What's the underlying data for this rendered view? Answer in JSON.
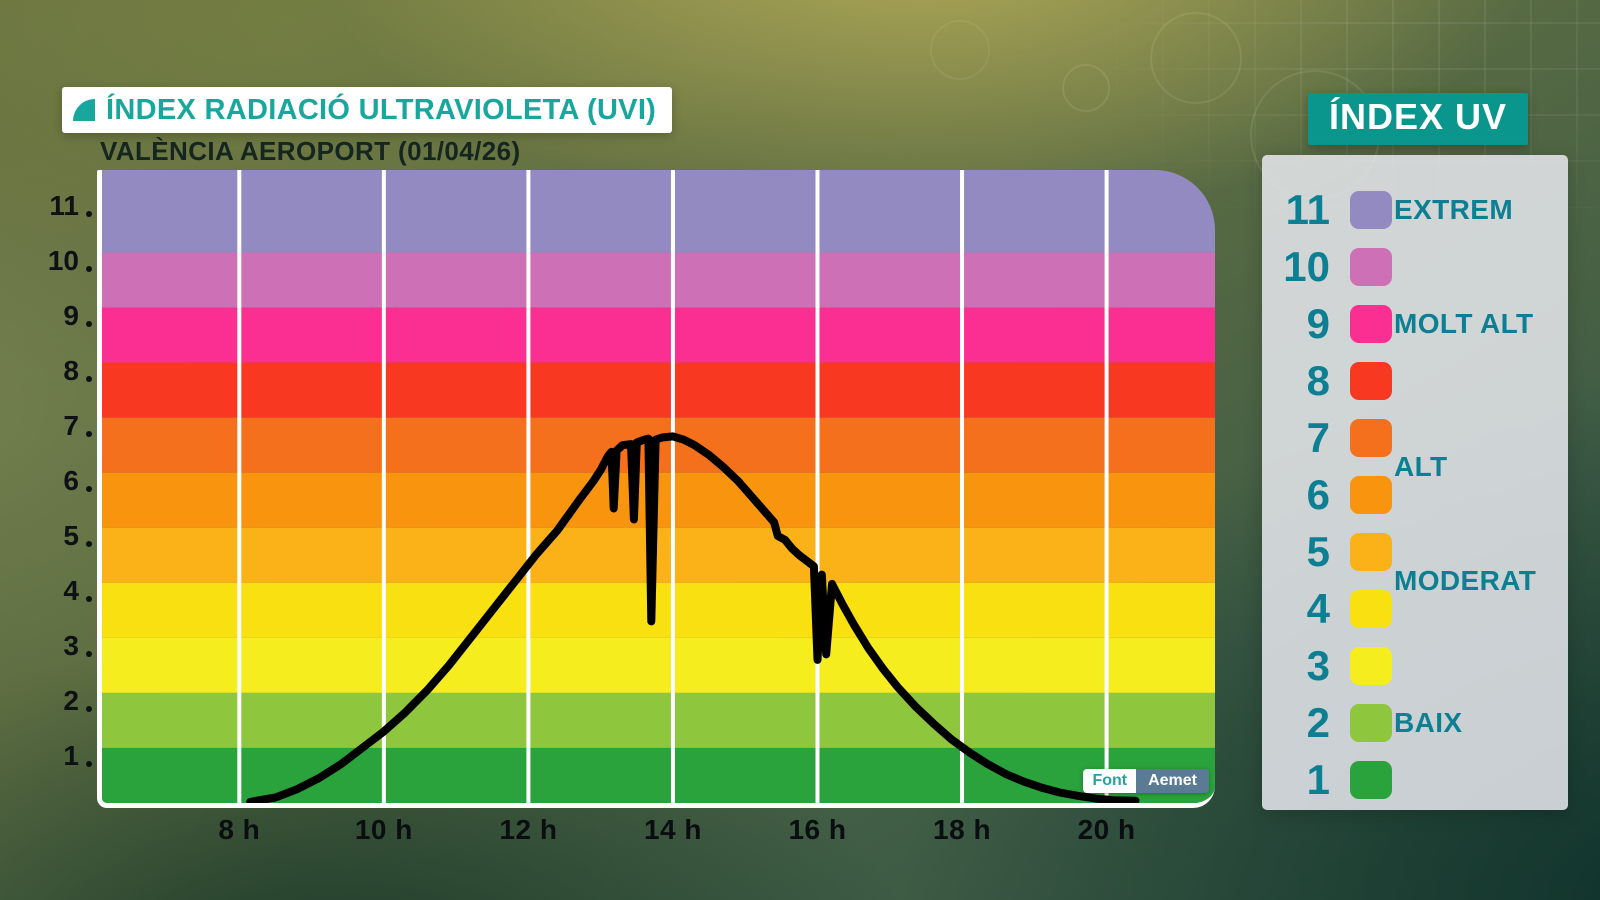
{
  "header": {
    "title": "ÍNDEX RADIACIÓ ULTRAVIOLETA (UVI)",
    "subtitle": "VALÈNCIA AEROPORT (01/04/26)",
    "corner_badge": "ÍNDEX UV"
  },
  "source": {
    "label": "Font",
    "value": "Aemet"
  },
  "colors": {
    "accent_teal": "#0a968c",
    "legend_text": "#0d7f93",
    "curve": "#000000",
    "gridline": "#ffffff"
  },
  "legend": {
    "categories": [
      {
        "text": "EXTREM",
        "anchor_level": 11
      },
      {
        "text": "MOLT ALT",
        "anchor_level": 9
      },
      {
        "text": "ALT",
        "anchor_level": 6.5
      },
      {
        "text": "MODERAT",
        "anchor_level": 4.5
      },
      {
        "text": "BAIX",
        "anchor_level": 2
      }
    ]
  },
  "chart_data": {
    "type": "line",
    "title": "ÍNDEX RADIACIÓ ULTRAVIOLETA (UVI)",
    "subtitle": "VALÈNCIA AEROPORT (01/04/26)",
    "station": "VALÈNCIA AEROPORT",
    "date": "01/04/26",
    "x_unit": "hour",
    "x_range": [
      6.1,
      21.5
    ],
    "y_range": [
      0,
      11.5
    ],
    "grid": true,
    "legend_position": "right",
    "x_ticks": [
      {
        "hour": 8,
        "label": "8 h"
      },
      {
        "hour": 10,
        "label": "10 h"
      },
      {
        "hour": 12,
        "label": "12 h"
      },
      {
        "hour": 14,
        "label": "14 h"
      },
      {
        "hour": 16,
        "label": "16 h"
      },
      {
        "hour": 18,
        "label": "18 h"
      },
      {
        "hour": 20,
        "label": "20 h"
      }
    ],
    "y_ticks": [
      11,
      10,
      9,
      8,
      7,
      6,
      5,
      4,
      3,
      2,
      1
    ],
    "bands": [
      {
        "level": 11,
        "category": "EXTREM",
        "color": "#938ac2"
      },
      {
        "level": 10,
        "category": "MOLT ALT",
        "color": "#ce70b6"
      },
      {
        "level": 9,
        "category": "MOLT ALT",
        "color": "#fb2e91"
      },
      {
        "level": 8,
        "category": "MOLT ALT",
        "color": "#f93822"
      },
      {
        "level": 7,
        "category": "ALT",
        "color": "#f4701c"
      },
      {
        "level": 6,
        "category": "ALT",
        "color": "#f9940e"
      },
      {
        "level": 5,
        "category": "MODERAT",
        "color": "#fbb118"
      },
      {
        "level": 4,
        "category": "MODERAT",
        "color": "#f8e011"
      },
      {
        "level": 3,
        "category": "MODERAT",
        "color": "#f6ed1f"
      },
      {
        "level": 2,
        "category": "BAIX",
        "color": "#8ec63e"
      },
      {
        "level": 1,
        "category": "BAIX",
        "color": "#2aa33c"
      }
    ],
    "series": [
      {
        "name": "UVI",
        "color": "#000000",
        "points": [
          [
            8.15,
            0.02
          ],
          [
            8.5,
            0.1
          ],
          [
            8.8,
            0.25
          ],
          [
            9.1,
            0.45
          ],
          [
            9.4,
            0.7
          ],
          [
            9.7,
            1.0
          ],
          [
            10.0,
            1.3
          ],
          [
            10.3,
            1.65
          ],
          [
            10.6,
            2.05
          ],
          [
            10.9,
            2.5
          ],
          [
            11.2,
            3.0
          ],
          [
            11.5,
            3.5
          ],
          [
            11.8,
            4.0
          ],
          [
            12.1,
            4.5
          ],
          [
            12.4,
            4.95
          ],
          [
            12.7,
            5.5
          ],
          [
            12.9,
            5.85
          ],
          [
            13.0,
            6.05
          ],
          [
            13.1,
            6.3
          ],
          [
            13.15,
            6.38
          ],
          [
            13.18,
            5.35
          ],
          [
            13.22,
            6.4
          ],
          [
            13.3,
            6.5
          ],
          [
            13.42,
            6.52
          ],
          [
            13.46,
            5.15
          ],
          [
            13.5,
            6.55
          ],
          [
            13.6,
            6.6
          ],
          [
            13.66,
            6.62
          ],
          [
            13.7,
            3.3
          ],
          [
            13.76,
            6.6
          ],
          [
            13.85,
            6.64
          ],
          [
            14.0,
            6.66
          ],
          [
            14.15,
            6.6
          ],
          [
            14.3,
            6.5
          ],
          [
            14.5,
            6.32
          ],
          [
            14.7,
            6.1
          ],
          [
            14.9,
            5.85
          ],
          [
            15.1,
            5.55
          ],
          [
            15.3,
            5.25
          ],
          [
            15.4,
            5.1
          ],
          [
            15.45,
            4.85
          ],
          [
            15.55,
            4.78
          ],
          [
            15.65,
            4.62
          ],
          [
            15.75,
            4.5
          ],
          [
            15.85,
            4.4
          ],
          [
            15.95,
            4.3
          ],
          [
            16.0,
            2.6
          ],
          [
            16.06,
            4.15
          ],
          [
            16.12,
            2.7
          ],
          [
            16.2,
            3.98
          ],
          [
            16.35,
            3.6
          ],
          [
            16.5,
            3.25
          ],
          [
            16.7,
            2.82
          ],
          [
            16.9,
            2.45
          ],
          [
            17.1,
            2.12
          ],
          [
            17.35,
            1.76
          ],
          [
            17.6,
            1.45
          ],
          [
            17.85,
            1.16
          ],
          [
            18.1,
            0.92
          ],
          [
            18.35,
            0.71
          ],
          [
            18.6,
            0.53
          ],
          [
            18.85,
            0.39
          ],
          [
            19.1,
            0.28
          ],
          [
            19.35,
            0.19
          ],
          [
            19.6,
            0.13
          ],
          [
            19.85,
            0.08
          ],
          [
            20.1,
            0.05
          ],
          [
            20.4,
            0.04
          ]
        ]
      }
    ]
  }
}
